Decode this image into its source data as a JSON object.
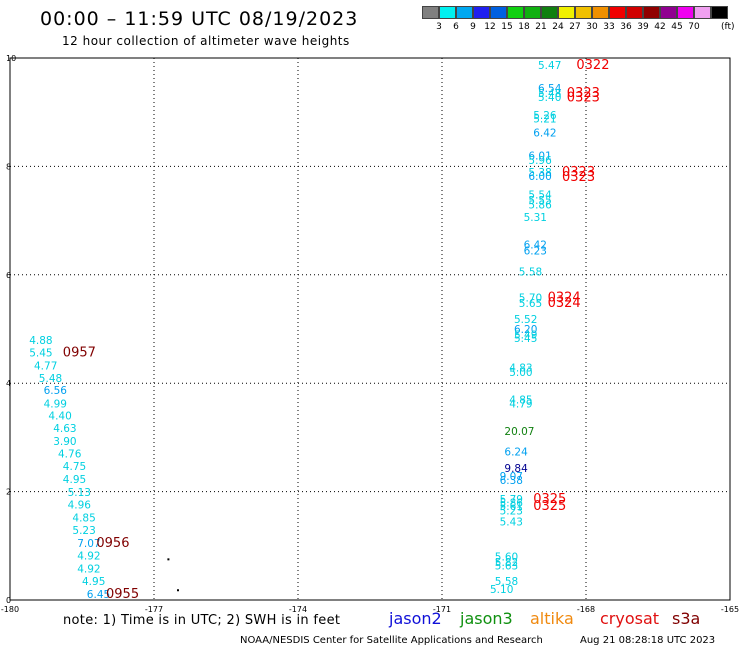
{
  "title": "00:00 – 11:59 UTC 08/19/2023",
  "subtitle": "12 hour collection of altimeter wave heights",
  "note": "note:  1) Time is in UTC;  2) SWH is in feet",
  "credit": "NOAA/NESDIS Center for Satellite Applications and Research",
  "timestamp": "Aug 21 08:28:18 UTC 2023",
  "satellites": [
    {
      "name": "jason2",
      "color": "#1010d8"
    },
    {
      "name": "jason3",
      "color": "#109010"
    },
    {
      "name": "altika",
      "color": "#f08a10"
    },
    {
      "name": "cryosat",
      "color": "#e01010"
    },
    {
      "name": "s3a",
      "color": "#800000"
    }
  ],
  "color_scale": {
    "colors": [
      "#808080",
      "#00f0f0",
      "#00a8f0",
      "#2020f0",
      "#0060e0",
      "#10d010",
      "#10b010",
      "#108010",
      "#f0f000",
      "#f0c000",
      "#f09000",
      "#f00000",
      "#d00000",
      "#900000",
      "#900090",
      "#f000f0",
      "#f0a0f0",
      "#000000"
    ],
    "labels": [
      "3",
      "6",
      "9",
      "12",
      "15",
      "18",
      "21",
      "24",
      "27",
      "30",
      "33",
      "36",
      "39",
      "42",
      "45",
      "70"
    ],
    "unit": "(ft)"
  },
  "chart_data": {
    "type": "scatter",
    "title": "00:00 – 11:59 UTC 08/19/2023",
    "xlim": [
      -180,
      -165
    ],
    "ylim": [
      0,
      10
    ],
    "x_ticks": [
      "-180",
      "-177",
      "-174",
      "-171",
      "-168",
      "-165"
    ],
    "y_ticks": [
      "0",
      "2",
      "4",
      "6",
      "8",
      "10"
    ],
    "grid": true,
    "swh_labels": [
      {
        "x": -179.6,
        "y": 4.8,
        "label": "4.88",
        "color": "#00d0e0"
      },
      {
        "x": -179.6,
        "y": 4.57,
        "label": "5.45",
        "color": "#00d0e0"
      },
      {
        "x": -179.5,
        "y": 4.33,
        "label": "4.77",
        "color": "#00d0e0"
      },
      {
        "x": -179.4,
        "y": 4.1,
        "label": "5.48",
        "color": "#00d0e0"
      },
      {
        "x": -179.3,
        "y": 3.87,
        "label": "6.56",
        "color": "#00a0f0"
      },
      {
        "x": -179.3,
        "y": 3.63,
        "label": "4.99",
        "color": "#00d0e0"
      },
      {
        "x": -179.2,
        "y": 3.4,
        "label": "4.40",
        "color": "#00d0e0"
      },
      {
        "x": -179.1,
        "y": 3.17,
        "label": "4.63",
        "color": "#00d0e0"
      },
      {
        "x": -179.1,
        "y": 2.93,
        "label": "3.90",
        "color": "#00d0e0"
      },
      {
        "x": -179.0,
        "y": 2.7,
        "label": "4.76",
        "color": "#00d0e0"
      },
      {
        "x": -178.9,
        "y": 2.47,
        "label": "4.75",
        "color": "#00d0e0"
      },
      {
        "x": -178.9,
        "y": 2.23,
        "label": "4.95",
        "color": "#00d0e0"
      },
      {
        "x": -178.8,
        "y": 1.99,
        "label": "5.13",
        "color": "#00d0e0"
      },
      {
        "x": -178.8,
        "y": 1.76,
        "label": "4.96",
        "color": "#00d0e0"
      },
      {
        "x": -178.7,
        "y": 1.52,
        "label": "4.85",
        "color": "#00d0e0"
      },
      {
        "x": -178.7,
        "y": 1.29,
        "label": "5.23",
        "color": "#00d0e0"
      },
      {
        "x": -178.6,
        "y": 1.05,
        "label": "7.07",
        "color": "#00a0f0"
      },
      {
        "x": -178.6,
        "y": 0.82,
        "label": "4.92",
        "color": "#00d0e0"
      },
      {
        "x": -178.6,
        "y": 0.58,
        "label": "4.92",
        "color": "#00d0e0"
      },
      {
        "x": -178.5,
        "y": 0.35,
        "label": "4.95",
        "color": "#00d0e0"
      },
      {
        "x": -178.4,
        "y": 0.11,
        "label": "6.45",
        "color": "#00a0f0"
      },
      {
        "x": -169.0,
        "y": 9.87,
        "label": "5.47",
        "color": "#00d0e0"
      },
      {
        "x": -169.0,
        "y": 9.45,
        "label": "6.54",
        "color": "#00a0f0"
      },
      {
        "x": -169.0,
        "y": 9.35,
        "label": "5.48",
        "color": "#00d0e0"
      },
      {
        "x": -169.0,
        "y": 9.28,
        "label": "5.40",
        "color": "#00d0e0"
      },
      {
        "x": -169.1,
        "y": 8.95,
        "label": "5.26",
        "color": "#00d0e0"
      },
      {
        "x": -169.1,
        "y": 8.88,
        "label": "5.21",
        "color": "#00d0e0"
      },
      {
        "x": -169.1,
        "y": 8.63,
        "label": "6.42",
        "color": "#00a0f0"
      },
      {
        "x": -169.2,
        "y": 8.2,
        "label": "6.01",
        "color": "#00a0f0"
      },
      {
        "x": -169.2,
        "y": 8.12,
        "label": "5.96",
        "color": "#00d0e0"
      },
      {
        "x": -169.2,
        "y": 7.9,
        "label": "5.38",
        "color": "#00d0e0"
      },
      {
        "x": -169.2,
        "y": 7.82,
        "label": "6.00",
        "color": "#00a0f0"
      },
      {
        "x": -169.2,
        "y": 7.48,
        "label": "5.54",
        "color": "#00d0e0"
      },
      {
        "x": -169.2,
        "y": 7.38,
        "label": "5.55",
        "color": "#00d0e0"
      },
      {
        "x": -169.2,
        "y": 7.3,
        "label": "5.86",
        "color": "#00d0e0"
      },
      {
        "x": -169.3,
        "y": 7.07,
        "label": "5.31",
        "color": "#00d0e0"
      },
      {
        "x": -169.3,
        "y": 6.56,
        "label": "6.42",
        "color": "#00a0f0"
      },
      {
        "x": -169.3,
        "y": 6.45,
        "label": "6.23",
        "color": "#00a0f0"
      },
      {
        "x": -169.4,
        "y": 6.06,
        "label": "5.58",
        "color": "#00d0e0"
      },
      {
        "x": -169.4,
        "y": 5.58,
        "label": "5.70",
        "color": "#00d0e0"
      },
      {
        "x": -169.4,
        "y": 5.48,
        "label": "5.65",
        "color": "#00d0e0"
      },
      {
        "x": -169.5,
        "y": 5.18,
        "label": "5.52",
        "color": "#00d0e0"
      },
      {
        "x": -169.5,
        "y": 5.0,
        "label": "6.20",
        "color": "#00a0f0"
      },
      {
        "x": -169.5,
        "y": 4.9,
        "label": "5.49",
        "color": "#00d0e0"
      },
      {
        "x": -169.5,
        "y": 4.83,
        "label": "5.45",
        "color": "#00d0e0"
      },
      {
        "x": -169.6,
        "y": 4.29,
        "label": "4.83",
        "color": "#00d0e0"
      },
      {
        "x": -169.6,
        "y": 4.21,
        "label": "5.00",
        "color": "#00d0e0"
      },
      {
        "x": -169.6,
        "y": 3.7,
        "label": "4.85",
        "color": "#00d0e0"
      },
      {
        "x": -169.6,
        "y": 3.63,
        "label": "4.79",
        "color": "#00d0e0"
      },
      {
        "x": -169.7,
        "y": 3.12,
        "label": "20.07",
        "color": "#108010"
      },
      {
        "x": -169.7,
        "y": 2.74,
        "label": "6.24",
        "color": "#00a0f0"
      },
      {
        "x": -169.7,
        "y": 2.44,
        "label": "9.84",
        "color": "#000090"
      },
      {
        "x": -169.8,
        "y": 2.29,
        "label": "9.07",
        "color": "#00a0f0"
      },
      {
        "x": -169.8,
        "y": 2.21,
        "label": "6.38",
        "color": "#00a0f0"
      },
      {
        "x": -169.8,
        "y": 1.86,
        "label": "5.79",
        "color": "#00d0e0"
      },
      {
        "x": -169.8,
        "y": 1.8,
        "label": "5.86",
        "color": "#00d0e0"
      },
      {
        "x": -169.8,
        "y": 1.73,
        "label": "5.61",
        "color": "#00d0e0"
      },
      {
        "x": -169.8,
        "y": 1.65,
        "label": "5.23",
        "color": "#00d0e0"
      },
      {
        "x": -169.8,
        "y": 1.45,
        "label": "5.43",
        "color": "#00d0e0"
      },
      {
        "x": -169.9,
        "y": 0.8,
        "label": "5.60",
        "color": "#00d0e0"
      },
      {
        "x": -169.9,
        "y": 0.7,
        "label": "5.82",
        "color": "#00d0e0"
      },
      {
        "x": -169.9,
        "y": 0.64,
        "label": "5.63",
        "color": "#00d0e0"
      },
      {
        "x": -169.9,
        "y": 0.35,
        "label": "5.58",
        "color": "#00d0e0"
      },
      {
        "x": -170.0,
        "y": 0.2,
        "label": "5.10",
        "color": "#00d0e0"
      }
    ],
    "time_labels": [
      {
        "x": -178.9,
        "y": 4.57,
        "label": "0957",
        "color": "#800000"
      },
      {
        "x": -178.2,
        "y": 1.05,
        "label": "0956",
        "color": "#800000"
      },
      {
        "x": -178.0,
        "y": 0.11,
        "label": "0955",
        "color": "#800000"
      },
      {
        "x": -168.2,
        "y": 9.87,
        "label": "0322",
        "color": "#f00000"
      },
      {
        "x": -168.4,
        "y": 9.35,
        "label": "0323",
        "color": "#f00000"
      },
      {
        "x": -168.4,
        "y": 9.27,
        "label": "0323",
        "color": "#f00000"
      },
      {
        "x": -168.5,
        "y": 7.9,
        "label": "0323",
        "color": "#f00000"
      },
      {
        "x": -168.5,
        "y": 7.8,
        "label": "0323",
        "color": "#f00000"
      },
      {
        "x": -168.8,
        "y": 5.58,
        "label": "0324",
        "color": "#f00000"
      },
      {
        "x": -168.8,
        "y": 5.48,
        "label": "0324",
        "color": "#f00000"
      },
      {
        "x": -169.1,
        "y": 1.86,
        "label": "0325",
        "color": "#f00000"
      },
      {
        "x": -169.1,
        "y": 1.73,
        "label": "0325",
        "color": "#f00000"
      }
    ],
    "dots": [
      {
        "x": -176.7,
        "y": 0.75
      },
      {
        "x": -176.5,
        "y": 0.18
      }
    ]
  }
}
